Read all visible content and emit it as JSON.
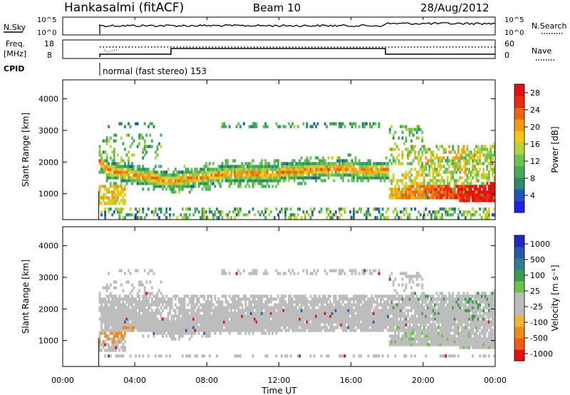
{
  "header": {
    "station": "Hankasalmi (fitACF)",
    "beam": "Beam 10",
    "date": "28/Aug/2012"
  },
  "top_panels": {
    "nsky_label": "N.Sky",
    "nsky_ticks": [
      "10^5",
      "10^0"
    ],
    "nsearch_label": "N.Search",
    "nsearch_ticks": [
      "10^5",
      "10^0"
    ],
    "freq_label_line1": "Freq.",
    "freq_label_line2": "[MHz]",
    "freq_ticks": [
      "18",
      "8"
    ],
    "nave_label": "Nave",
    "nave_ticks": [
      "60",
      "0"
    ],
    "cpid_label": "CPID",
    "cpid_text": "normal (fast stereo) 153"
  },
  "colors": {
    "power_scale": [
      "#1f22e6",
      "#2254b8",
      "#2a8a6a",
      "#47a95a",
      "#69c35a",
      "#b6d43a",
      "#f0c818",
      "#f09a18",
      "#ee6414",
      "#ea2a10",
      "#e41010"
    ],
    "velocity_scale": [
      "#2028c0",
      "#2a58a8",
      "#2f7f92",
      "#3c9a4a",
      "#6cc24a",
      "#bdbdbd",
      "#bdbdbd",
      "#f2b43a",
      "#f08a1a",
      "#ef5a15",
      "#e41010"
    ],
    "ground_scatter": "#bdbdbd"
  },
  "chart_data": [
    {
      "type": "heatmap",
      "title": "Power",
      "xlabel": "Time UT",
      "ylabel": "Slant Range [km]",
      "x_ticks": [
        "00:00",
        "04:00",
        "08:00",
        "12:00",
        "16:00",
        "20:00",
        "00:00"
      ],
      "xlim_hours": [
        0,
        24
      ],
      "y_ticks": [
        1000,
        2000,
        3000,
        4000
      ],
      "ylim_km": [
        180,
        4600
      ],
      "colorbar_label": "Power [dB]",
      "colorbar_ticks": [
        4,
        8,
        12,
        16,
        20,
        24,
        28
      ],
      "colorbar_range": [
        0,
        30
      ],
      "data_start_hour": 2.0,
      "features": [
        {
          "name": "F-region band",
          "t_start": 2.0,
          "t_end": 18.0,
          "range_km_center": [
            2200,
            1600,
            1550,
            1500,
            1550,
            1650,
            1700,
            1600
          ],
          "peak_db": 22
        },
        {
          "name": "morning echoes",
          "t_start": 2.0,
          "t_end": 3.0,
          "range_km": [
            700,
            1300
          ],
          "peak_db": 20
        },
        {
          "name": "evening rising band",
          "t_start": 18.0,
          "t_end": 24.0,
          "range_km": [
            700,
            2300
          ],
          "peak_db": 28
        }
      ]
    },
    {
      "type": "heatmap",
      "title": "Velocity",
      "xlabel": "Time UT",
      "ylabel": "Slant Range [km]",
      "x_ticks": [
        "00:00",
        "04:00",
        "08:00",
        "12:00",
        "16:00",
        "20:00",
        "00:00"
      ],
      "xlim_hours": [
        0,
        24
      ],
      "y_ticks": [
        1000,
        2000,
        3000,
        4000
      ],
      "ylim_km": [
        180,
        4600
      ],
      "colorbar_label": "Velocity [m s⁻¹]",
      "colorbar_ticks": [
        1000,
        500,
        100,
        25,
        -25,
        -100,
        -500,
        -1000
      ],
      "data_start_hour": 2.0,
      "features": [
        {
          "name": "ground scatter band",
          "t_start": 2.0,
          "t_end": 24.0,
          "range_km": [
            1300,
            2400
          ]
        },
        {
          "name": "evening ionospheric scatter",
          "t_start": 17.5,
          "t_end": 24.0,
          "range_km": [
            1500,
            2600
          ],
          "velocity_ms": [
            100,
            500
          ]
        }
      ]
    }
  ]
}
